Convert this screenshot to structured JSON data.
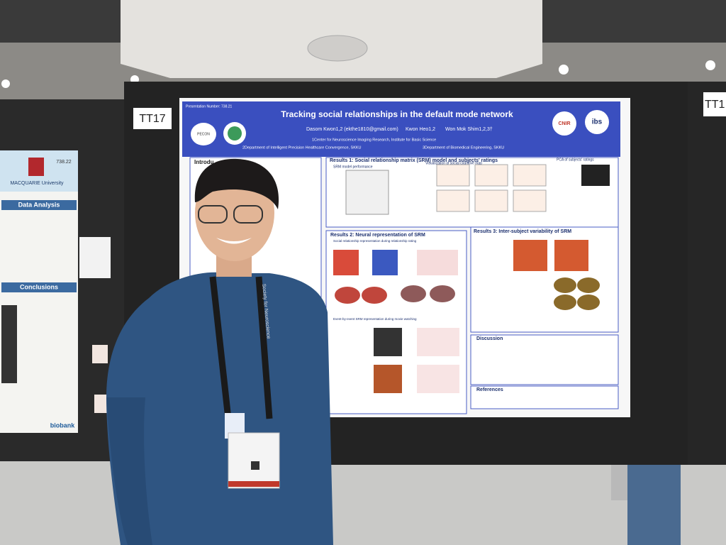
{
  "board_labels": [
    "TT17",
    "TT1"
  ],
  "poster": {
    "presentation_number": "Presentation Number: 738.21",
    "title": "Tracking social relationships in the default mode network",
    "authors": [
      "Dasom Kwon1,2 (ekthe1810@gmail.com)",
      "Kwon Heo1,2",
      "Won Mok Shim1,2,3†"
    ],
    "affiliations": [
      "1Center for Neuroscience Imaging Research, Institute for Basic Science",
      "2Department of Intelligent Precision Healthcare Convergence, SKKU",
      "3Department of Biomedical Engineering, SKKU"
    ],
    "logos": [
      "PECON",
      "CNIR",
      "ibs"
    ],
    "sections": [
      "Introdu",
      "Results 1: Social relationship matrix (SRM) model and subjects' ratings",
      "Results 2: Neural representation of SRM",
      "Results 3: Inter-subject variability of SRM",
      "Discussion",
      "References"
    ],
    "subheadings": [
      "SRM model performance",
      "Visualization of social cognitive map",
      "PCA of subjects' ratings",
      "Social relationship representation during relationship rating",
      "Event-by-event SRM representation during movie watching"
    ]
  },
  "left_poster": {
    "number": "738.22",
    "university": "MACQUARIE University",
    "headings": [
      "Data Analysis",
      "Conclusions"
    ],
    "logo": "biobank"
  },
  "lanyard": "Society for Neuroscience"
}
